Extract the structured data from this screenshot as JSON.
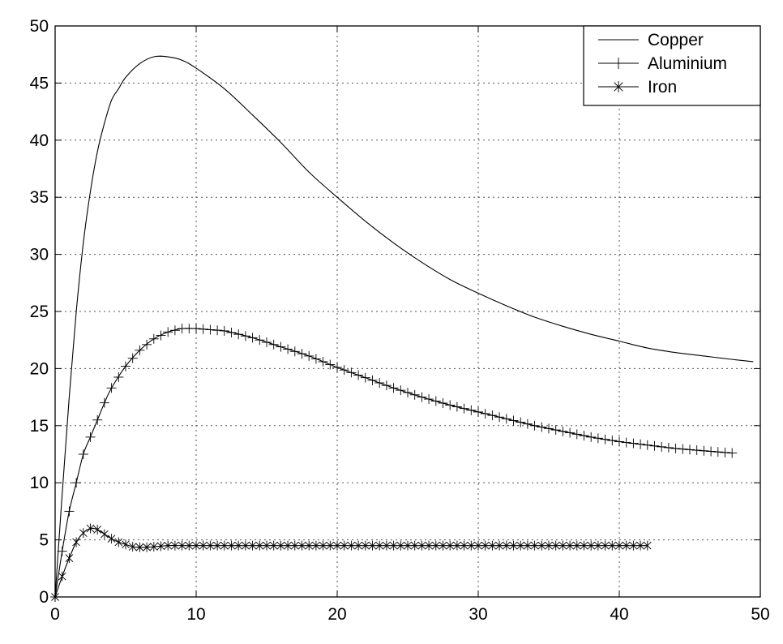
{
  "chart_data": {
    "type": "line",
    "xlim": [
      0,
      50
    ],
    "ylim": [
      0,
      50
    ],
    "x_ticks": [
      "0",
      "10",
      "20",
      "30",
      "40",
      "50"
    ],
    "y_ticks": [
      "0",
      "5",
      "10",
      "15",
      "20",
      "25",
      "30",
      "35",
      "40",
      "45",
      "50"
    ],
    "grid": true,
    "legend_position": "top-right",
    "series": [
      {
        "name": "Copper",
        "marker": "none",
        "x": [
          0,
          0.5,
          1,
          1.5,
          2,
          2.5,
          3,
          3.5,
          4,
          4.5,
          5,
          6,
          7,
          8,
          9,
          10,
          12,
          14,
          16,
          18,
          20,
          22,
          24,
          26,
          28,
          30,
          32,
          34,
          36,
          38,
          40,
          42,
          44,
          46,
          48,
          49.5
        ],
        "y": [
          0,
          9,
          17.5,
          25,
          31,
          35.5,
          39,
          41.5,
          43.5,
          44.5,
          45.5,
          46.7,
          47.3,
          47.3,
          47,
          46.3,
          44.5,
          42.2,
          39.8,
          37.2,
          35,
          32.9,
          31,
          29.3,
          27.8,
          26.6,
          25.5,
          24.5,
          23.7,
          23,
          22.4,
          21.8,
          21.4,
          21.1,
          20.8,
          20.6
        ]
      },
      {
        "name": "Aluminium",
        "marker": "plus",
        "x": [
          0,
          0.5,
          1,
          1.5,
          2,
          2.5,
          3,
          3.5,
          4,
          5,
          6,
          7,
          8,
          9,
          10,
          11,
          12,
          14,
          16,
          18,
          20,
          22,
          24,
          26,
          28,
          30,
          32,
          34,
          36,
          38,
          40,
          42,
          44,
          46,
          48
        ],
        "y": [
          0,
          4,
          7.5,
          10,
          12.5,
          14,
          15.5,
          17,
          18.3,
          20.2,
          21.6,
          22.6,
          23.2,
          23.5,
          23.5,
          23.4,
          23.3,
          22.7,
          21.9,
          21.1,
          20.1,
          19.2,
          18.3,
          17.5,
          16.8,
          16.2,
          15.6,
          15,
          14.5,
          14,
          13.6,
          13.3,
          13,
          12.8,
          12.6
        ]
      },
      {
        "name": "Iron",
        "marker": "asterisk",
        "x": [
          0,
          0.5,
          1,
          1.5,
          2,
          2.5,
          3,
          3.5,
          4,
          4.5,
          5,
          5.5,
          6,
          6.5,
          7,
          7.5,
          8,
          9,
          10,
          12,
          14,
          16,
          18,
          20,
          22,
          24,
          26,
          28,
          30,
          32,
          34,
          36,
          38,
          40,
          42
        ],
        "y": [
          0,
          1.8,
          3.4,
          4.8,
          5.6,
          6,
          5.9,
          5.5,
          5.1,
          4.8,
          4.6,
          4.4,
          4.35,
          4.35,
          4.4,
          4.45,
          4.5,
          4.5,
          4.5,
          4.5,
          4.5,
          4.5,
          4.5,
          4.5,
          4.5,
          4.5,
          4.5,
          4.5,
          4.5,
          4.5,
          4.5,
          4.5,
          4.5,
          4.5,
          4.5
        ]
      }
    ]
  }
}
